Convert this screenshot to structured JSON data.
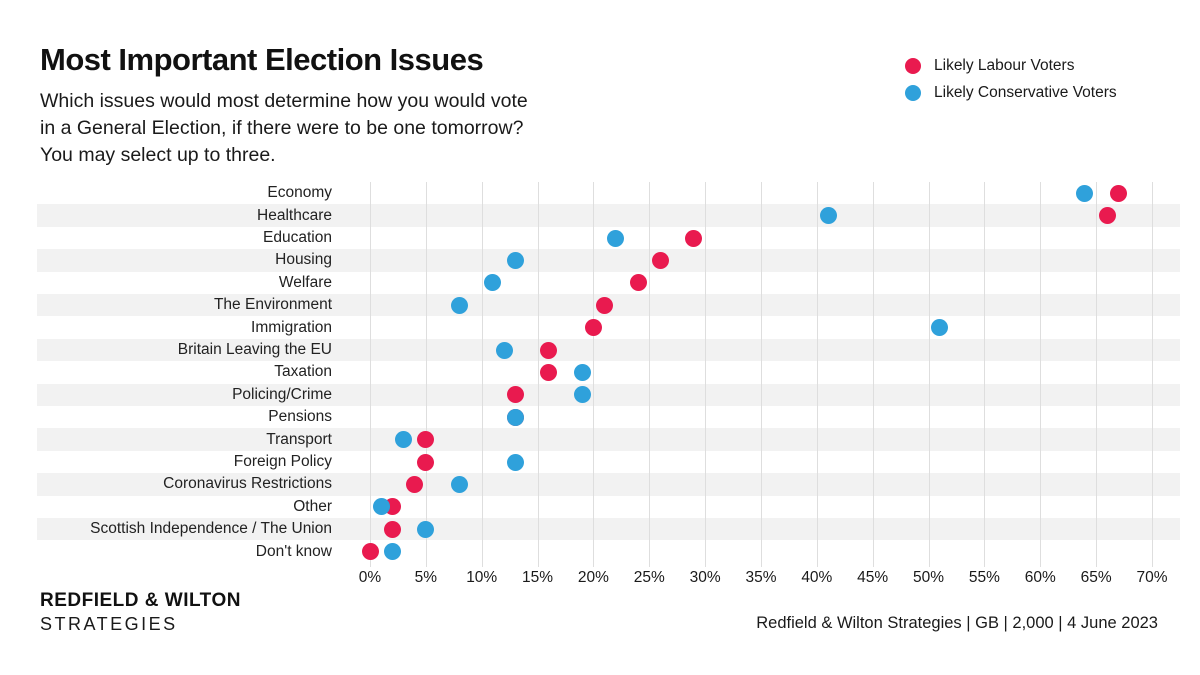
{
  "header": {
    "title": "Most Important Election Issues",
    "subtitle": "Which issues would most determine how you would vote\nin a General Election, if there were to be one tomorrow?\nYou may select up to three."
  },
  "legend": {
    "items": [
      {
        "label": "Likely Labour Voters",
        "color": "#e91a4f"
      },
      {
        "label": "Likely Conservative Voters",
        "color": "#2fa1db"
      }
    ]
  },
  "chart_data": {
    "type": "scatter",
    "subtype": "horizontal-dot-plot",
    "categories": [
      "Economy",
      "Healthcare",
      "Education",
      "Housing",
      "Welfare",
      "The Environment",
      "Immigration",
      "Britain Leaving the EU",
      "Taxation",
      "Policing/Crime",
      "Pensions",
      "Transport",
      "Foreign Policy",
      "Coronavirus Restrictions",
      "Other",
      "Scottish Independence / The Union",
      "Don't know"
    ],
    "series": [
      {
        "name": "Likely Labour Voters",
        "color": "#e91a4f",
        "values": [
          67,
          66,
          29,
          26,
          24,
          21,
          20,
          16,
          16,
          13,
          13,
          5,
          5,
          4,
          2,
          2,
          0
        ]
      },
      {
        "name": "Likely Conservative Voters",
        "color": "#2fa1db",
        "values": [
          64,
          41,
          22,
          13,
          11,
          8,
          51,
          12,
          19,
          19,
          13,
          3,
          13,
          8,
          1,
          5,
          2
        ]
      }
    ],
    "x_tick_labels": [
      "0%",
      "5%",
      "10%",
      "15%",
      "20%",
      "25%",
      "30%",
      "35%",
      "40%",
      "45%",
      "50%",
      "55%",
      "60%",
      "65%",
      "70%"
    ],
    "xlim": [
      0,
      70
    ],
    "x_unit": "%",
    "grid": true,
    "legend_position": "top-right",
    "row_band_color": "#f2f2f2",
    "gridline_color": "#dedede"
  },
  "footer": {
    "logo_line1": "REDFIELD & WILTON",
    "logo_line2": "STRATEGIES",
    "caption": "Redfield & Wilton Strategies | GB | 2,000 | 4 June 2023"
  }
}
